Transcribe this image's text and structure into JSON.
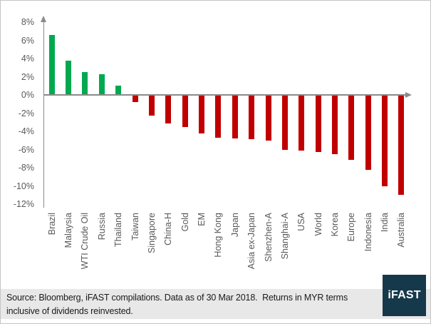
{
  "chart_data": {
    "type": "bar",
    "title": "",
    "categories": [
      "Brazil",
      "Malaysia",
      "WTI Crude Oil",
      "Russia",
      "Thailand",
      "Taiwan",
      "Singapore",
      "China-H",
      "Gold",
      "EM",
      "Hong Kong",
      "Japan",
      "Asia ex-Japan",
      "Shenzhen-A",
      "Shanghai-A",
      "USA",
      "World",
      "Korea",
      "Europe",
      "Indonesia",
      "India",
      "Australia"
    ],
    "values": [
      6.6,
      3.8,
      2.5,
      2.3,
      1.0,
      -0.8,
      -2.3,
      -3.1,
      -3.5,
      -4.2,
      -4.7,
      -4.8,
      -4.9,
      -5.0,
      -6.0,
      -6.1,
      -6.3,
      -6.5,
      -7.1,
      -8.2,
      -10.0,
      -11.0
    ],
    "unit": "%",
    "xlabel": "",
    "ylabel": "",
    "ylim": [
      -12,
      8
    ],
    "y_ticks": [
      8,
      6,
      4,
      2,
      0,
      -2,
      -4,
      -6,
      -8,
      -10,
      -12
    ],
    "y_tick_labels": [
      "8%",
      "6%",
      "4%",
      "2%",
      "0%",
      "-2%",
      "-4%",
      "-6%",
      "-8%",
      "-10%",
      "-12%"
    ],
    "grid": false,
    "legend": "none",
    "colors": {
      "positive": "#00A94F",
      "negative": "#C00000",
      "axis": "#8A8A8A",
      "tick_labels": "#595959"
    }
  },
  "footer": {
    "source_text": "Source: Bloomberg, iFAST compilations. Data as of 30 Mar 2018.  Returns in MYR terms inclusive of dividends reinvested.",
    "background_color": "#E8E8E8",
    "text_color": "#1A1A1A",
    "logo": {
      "text": "iFAST",
      "background_color": "#16384B",
      "text_color": "#FFFFFF"
    }
  },
  "icons": {
    "y_axis_arrow": "arrow-up",
    "x_axis_arrow": "arrow-right"
  }
}
